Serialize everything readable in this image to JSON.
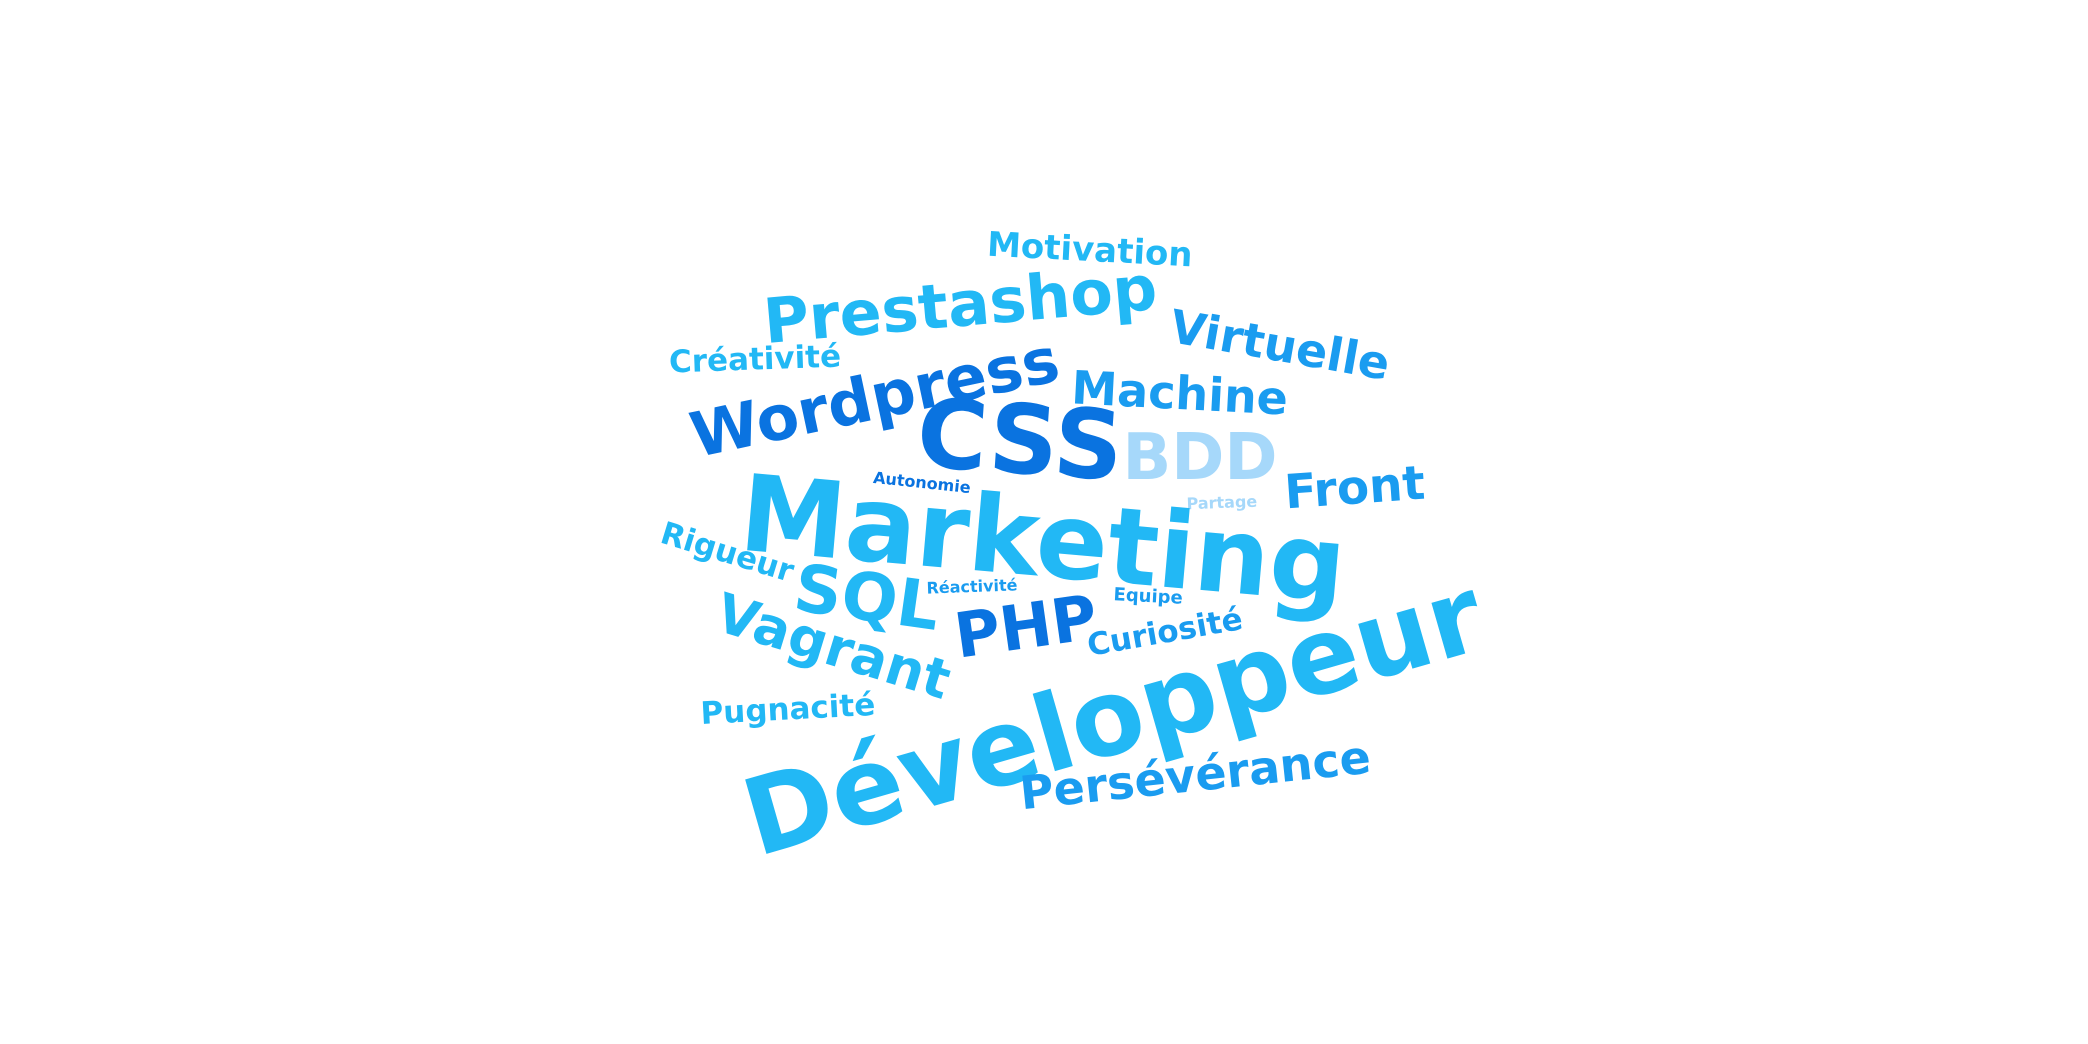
{
  "palette": {
    "dark": "#0a73e0",
    "mid": "#1a9cf0",
    "light": "#22b8f5",
    "pale": "#a6d8fa"
  },
  "words": [
    {
      "text": "Motivation",
      "color": "light"
    },
    {
      "text": "Prestashop",
      "color": "light"
    },
    {
      "text": "Virtuelle",
      "color": "mid"
    },
    {
      "text": "Créativité",
      "color": "light"
    },
    {
      "text": "Wordpress",
      "color": "dark"
    },
    {
      "text": "Machine",
      "color": "mid"
    },
    {
      "text": "CSS",
      "color": "dark"
    },
    {
      "text": "BDD",
      "color": "pale"
    },
    {
      "text": "Autonomie",
      "color": "dark"
    },
    {
      "text": "Front",
      "color": "mid"
    },
    {
      "text": "Partage",
      "color": "pale"
    },
    {
      "text": "Marketing",
      "color": "light"
    },
    {
      "text": "Rigueur",
      "color": "light"
    },
    {
      "text": "SQL",
      "color": "light"
    },
    {
      "text": "Réactivité",
      "color": "mid"
    },
    {
      "text": "Equipe",
      "color": "mid"
    },
    {
      "text": "PHP",
      "color": "dark"
    },
    {
      "text": "Vagrant",
      "color": "light"
    },
    {
      "text": "Curiosité",
      "color": "mid"
    },
    {
      "text": "Développeur",
      "color": "light"
    },
    {
      "text": "Pugnacité",
      "color": "light"
    },
    {
      "text": "Persévérance",
      "color": "mid"
    }
  ]
}
